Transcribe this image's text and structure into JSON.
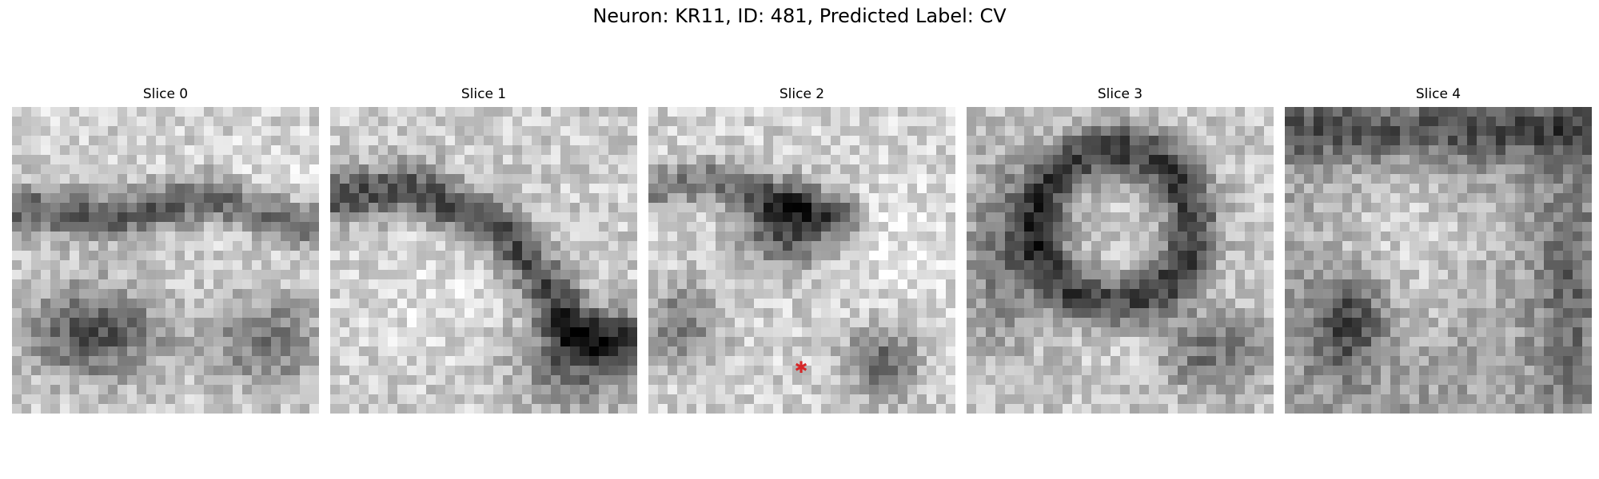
{
  "figure": {
    "title": "Neuron: KR11, ID: 481, Predicted Label: CV"
  },
  "slices": [
    {
      "label": "Slice 0",
      "has_marker": false,
      "description": "grayscale texture with dark lower band"
    },
    {
      "label": "Slice 1",
      "has_marker": false,
      "description": "grayscale texture with dark diagonal band and bright lower-left region"
    },
    {
      "label": "Slice 2",
      "has_marker": true,
      "description": "grayscale texture with dark central blob and red marker"
    },
    {
      "label": "Slice 3",
      "has_marker": false,
      "description": "grayscale texture with dark ring around bright center"
    },
    {
      "label": "Slice 4",
      "has_marker": false,
      "description": "grayscale noisy texture with dark lower-left blob"
    }
  ],
  "marker": {
    "glyph": "✱",
    "color": "#d62728",
    "slice_index": 2
  },
  "colormap": "gray",
  "grid_size": 32
}
